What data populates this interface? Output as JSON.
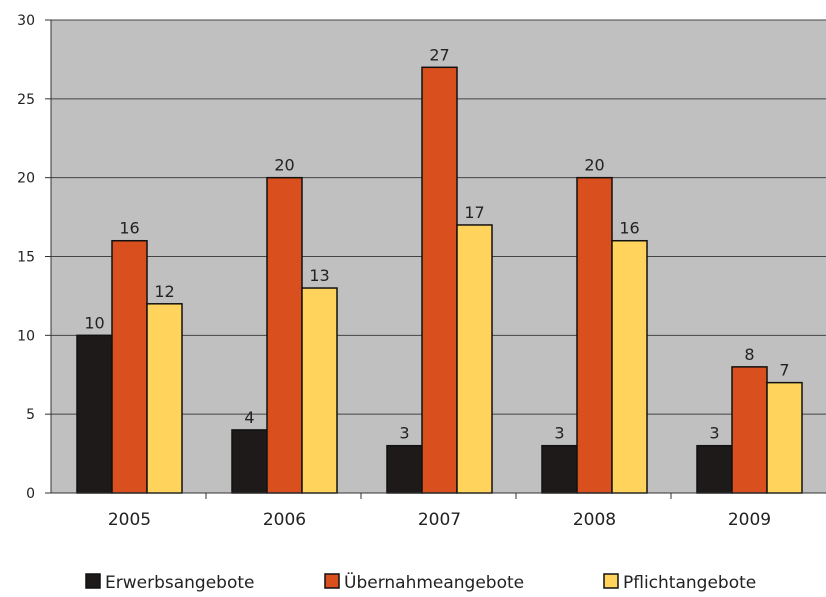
{
  "chart_data": {
    "type": "bar",
    "categories": [
      "2005",
      "2006",
      "2007",
      "2008",
      "2009"
    ],
    "series": [
      {
        "name": "Erwerbsangebote",
        "color": "#1f1a1a",
        "values": [
          10,
          4,
          3,
          3,
          3
        ]
      },
      {
        "name": "Übernahmeangebote",
        "color": "#d94f1e",
        "values": [
          16,
          20,
          27,
          20,
          8
        ]
      },
      {
        "name": "Pflichtangebote",
        "color": "#ffd35c",
        "values": [
          12,
          13,
          17,
          16,
          7
        ]
      }
    ],
    "ylim": [
      0,
      30
    ],
    "yticks": [
      0,
      5,
      10,
      15,
      20,
      25,
      30
    ],
    "grid": true,
    "plot_background": "#c0c0c0",
    "legend_position": "bottom"
  }
}
